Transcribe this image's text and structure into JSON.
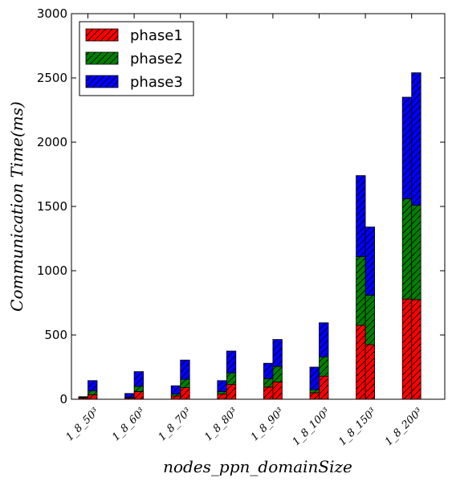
{
  "chart_data": {
    "type": "bar",
    "stacked": true,
    "grouped": true,
    "ylabel": "Communication Time(ms)",
    "xlabel": "nodes_ppn_domainSize",
    "ylim": [
      0,
      3000
    ],
    "yticks": [
      0,
      500,
      1000,
      1500,
      2000,
      2500,
      3000
    ],
    "categories": [
      "1_8_50³",
      "1_8_60³",
      "1_8_70³",
      "1_8_80³",
      "1_8_90³",
      "1_8_100³",
      "1_8_150³",
      "1_8_200³"
    ],
    "series": [
      {
        "name": "phase1",
        "color": "#ff0000",
        "left": [
          10,
          10,
          25,
          40,
          95,
          50,
          575,
          780
        ],
        "right": [
          35,
          60,
          90,
          115,
          135,
          180,
          425,
          775
        ]
      },
      {
        "name": "phase2",
        "color": "#008000",
        "left": [
          5,
          5,
          15,
          20,
          65,
          25,
          535,
          780
        ],
        "right": [
          30,
          40,
          65,
          90,
          120,
          150,
          385,
          735
        ]
      },
      {
        "name": "phase3",
        "color": "#0000ff",
        "left": [
          5,
          30,
          65,
          85,
          120,
          175,
          630,
          790
        ],
        "right": [
          80,
          115,
          150,
          170,
          210,
          265,
          530,
          1030
        ]
      }
    ],
    "legend_position": "top-left"
  }
}
